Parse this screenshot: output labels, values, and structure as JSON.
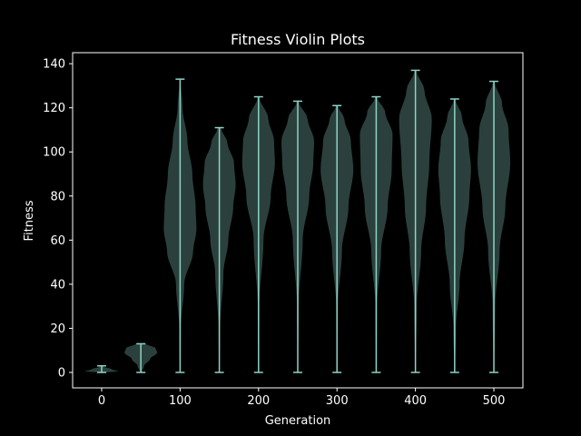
{
  "chart_data": {
    "type": "violin",
    "title": "Fitness Violin Plots",
    "xlabel": "Generation",
    "ylabel": "Fitness",
    "xlim": [
      -37,
      537
    ],
    "ylim": [
      -7,
      145
    ],
    "xticks": [
      0,
      100,
      200,
      300,
      400,
      500
    ],
    "yticks": [
      0,
      20,
      40,
      60,
      80,
      100,
      120,
      140
    ],
    "xtick_labels": [
      "0",
      "100",
      "200",
      "300",
      "400",
      "500"
    ],
    "ytick_labels": [
      "0",
      "20",
      "40",
      "60",
      "80",
      "100",
      "120",
      "140"
    ],
    "colors": {
      "background": "#000000",
      "violin_fill": "#8dd3c7",
      "violin_line": "#8dd3c7",
      "axes": "#ffffff"
    },
    "series": [
      {
        "x": 0,
        "min": 0,
        "max": 3,
        "profile": [
          [
            0,
            0.3
          ],
          [
            0.5,
            1.0
          ],
          [
            1.5,
            0.6
          ],
          [
            2.5,
            0.15
          ],
          [
            3,
            0.05
          ]
        ]
      },
      {
        "x": 50,
        "min": 0,
        "max": 13,
        "profile": [
          [
            0,
            0.05
          ],
          [
            3,
            0.2
          ],
          [
            6,
            0.55
          ],
          [
            9,
            1.0
          ],
          [
            11,
            0.9
          ],
          [
            13,
            0.3
          ]
        ]
      },
      {
        "x": 100,
        "min": 0,
        "max": 133,
        "profile": [
          [
            0,
            0.02
          ],
          [
            20,
            0.05
          ],
          [
            40,
            0.25
          ],
          [
            55,
            0.8
          ],
          [
            65,
            1.0
          ],
          [
            75,
            0.95
          ],
          [
            90,
            0.75
          ],
          [
            105,
            0.45
          ],
          [
            120,
            0.15
          ],
          [
            133,
            0.02
          ]
        ]
      },
      {
        "x": 150,
        "min": 0,
        "max": 111,
        "profile": [
          [
            0,
            0.02
          ],
          [
            20,
            0.05
          ],
          [
            45,
            0.25
          ],
          [
            60,
            0.55
          ],
          [
            75,
            0.85
          ],
          [
            85,
            1.0
          ],
          [
            95,
            0.9
          ],
          [
            104,
            0.5
          ],
          [
            111,
            0.1
          ]
        ]
      },
      {
        "x": 200,
        "min": 0,
        "max": 125,
        "profile": [
          [
            0,
            0.02
          ],
          [
            30,
            0.05
          ],
          [
            60,
            0.3
          ],
          [
            80,
            0.75
          ],
          [
            95,
            1.0
          ],
          [
            105,
            0.95
          ],
          [
            115,
            0.6
          ],
          [
            125,
            0.05
          ]
        ]
      },
      {
        "x": 250,
        "min": 0,
        "max": 123,
        "profile": [
          [
            0,
            0.02
          ],
          [
            30,
            0.05
          ],
          [
            60,
            0.3
          ],
          [
            80,
            0.7
          ],
          [
            95,
            0.95
          ],
          [
            105,
            1.0
          ],
          [
            115,
            0.6
          ],
          [
            123,
            0.05
          ]
        ]
      },
      {
        "x": 300,
        "min": 0,
        "max": 121,
        "profile": [
          [
            0,
            0.02
          ],
          [
            30,
            0.05
          ],
          [
            55,
            0.3
          ],
          [
            75,
            0.7
          ],
          [
            92,
            1.0
          ],
          [
            105,
            0.85
          ],
          [
            115,
            0.45
          ],
          [
            121,
            0.05
          ]
        ]
      },
      {
        "x": 350,
        "min": 0,
        "max": 125,
        "profile": [
          [
            0,
            0.02
          ],
          [
            30,
            0.05
          ],
          [
            55,
            0.3
          ],
          [
            75,
            0.7
          ],
          [
            92,
            0.95
          ],
          [
            108,
            1.0
          ],
          [
            118,
            0.55
          ],
          [
            125,
            0.05
          ]
        ]
      },
      {
        "x": 400,
        "min": 0,
        "max": 137,
        "profile": [
          [
            0,
            0.02
          ],
          [
            30,
            0.08
          ],
          [
            55,
            0.35
          ],
          [
            75,
            0.65
          ],
          [
            95,
            0.85
          ],
          [
            115,
            1.0
          ],
          [
            128,
            0.55
          ],
          [
            137,
            0.05
          ]
        ]
      },
      {
        "x": 450,
        "min": 0,
        "max": 124,
        "profile": [
          [
            0,
            0.02
          ],
          [
            20,
            0.08
          ],
          [
            40,
            0.3
          ],
          [
            60,
            0.6
          ],
          [
            80,
            0.9
          ],
          [
            92,
            1.0
          ],
          [
            105,
            0.85
          ],
          [
            116,
            0.45
          ],
          [
            124,
            0.05
          ]
        ]
      },
      {
        "x": 500,
        "min": 0,
        "max": 132,
        "profile": [
          [
            0,
            0.02
          ],
          [
            30,
            0.08
          ],
          [
            55,
            0.35
          ],
          [
            75,
            0.7
          ],
          [
            95,
            1.0
          ],
          [
            110,
            0.9
          ],
          [
            122,
            0.5
          ],
          [
            132,
            0.05
          ]
        ]
      }
    ]
  }
}
